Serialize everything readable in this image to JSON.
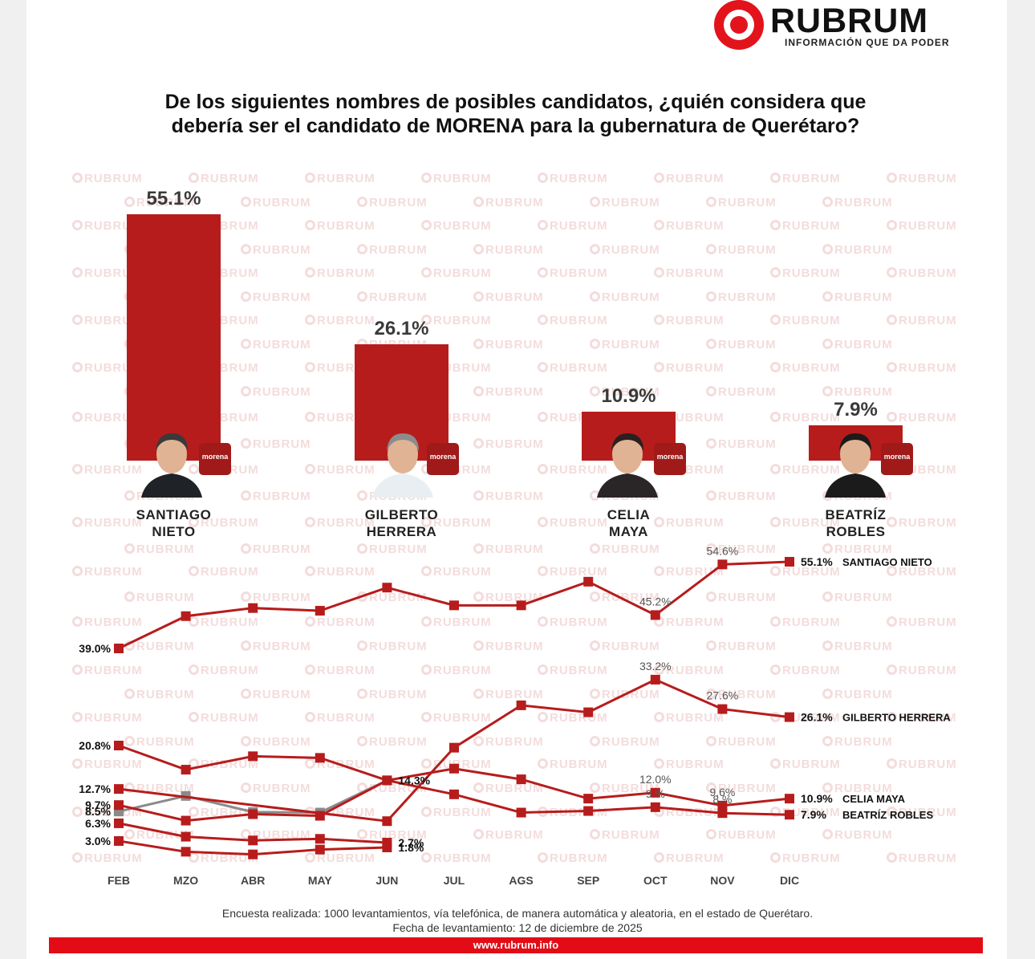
{
  "brand": {
    "name": "RUBRUM",
    "tagline": "INFORMACIÓN QUE DA PODER",
    "watermark": "RUBRUM",
    "url": "www.rubrum.info",
    "accent_color": "#e3131b",
    "bar_color": "#b71c1c"
  },
  "title_line1": "De los siguientes nombres de posibles candidatos, ¿quién considera que",
  "title_line2": "debería ser el candidato de MORENA para la gubernatura de Querétaro?",
  "badge_text": "morena",
  "candidates": [
    {
      "line1": "SANTIAGO",
      "line2": "NIETO",
      "pct_label": "55.1%"
    },
    {
      "line1": "GILBERTO",
      "line2": "HERRERA",
      "pct_label": "26.1%"
    },
    {
      "line1": "CELIA",
      "line2": "MAYA",
      "pct_label": "10.9%"
    },
    {
      "line1": "BEATRÍZ",
      "line2": "ROBLES",
      "pct_label": "7.9%"
    }
  ],
  "chart_data": [
    {
      "type": "bar",
      "categories": [
        "SANTIAGO NIETO",
        "GILBERTO HERRERA",
        "CELIA MAYA",
        "BEATRÍZ ROBLES"
      ],
      "values": [
        55.1,
        26.1,
        10.9,
        7.9
      ],
      "data_labels": [
        "55.1%",
        "26.1%",
        "10.9%",
        "7.9%"
      ]
    },
    {
      "type": "line",
      "x": [
        "FEB",
        "MZO",
        "ABR",
        "MAY",
        "JUN",
        "JUL",
        "AGS",
        "SEP",
        "OCT",
        "NOV",
        "DIC"
      ],
      "series": [
        {
          "name": "SANTIAGO NIETO",
          "color": "#b71c1c",
          "marker": "square",
          "values": [
            39.0,
            45.0,
            46.5,
            46.0,
            50.3,
            47.0,
            47.0,
            51.4,
            45.2,
            54.6,
            55.1
          ]
        },
        {
          "name": "GILBERTO HERRERA",
          "color": "#b71c1c",
          "marker": "square",
          "values": [
            12.7,
            null,
            null,
            null,
            6.7,
            20.4,
            28.3,
            27.0,
            33.2,
            27.6,
            26.1
          ]
        },
        {
          "name": "CELIA MAYA",
          "color": "#b71c1c",
          "marker": "square",
          "values": [
            20.8,
            16.3,
            18.8,
            18.5,
            14.3,
            16.5,
            14.5,
            10.9,
            12.0,
            9.6,
            10.9
          ]
        },
        {
          "name": "BEATRÍZ ROBLES",
          "color": "#b71c1c",
          "marker": "square",
          "values": [
            9.7,
            6.8,
            8.0,
            7.7,
            14.3,
            11.7,
            8.3,
            8.6,
            9.3,
            8.2,
            7.9
          ]
        },
        {
          "name": "",
          "color": "#8a8a8a",
          "marker": "square",
          "values": [
            8.5,
            11.4,
            8.4,
            8.3,
            14.3,
            null,
            null,
            null,
            null,
            null,
            null
          ]
        },
        {
          "name": "",
          "color": "#b71c1c",
          "marker": "square",
          "values": [
            6.3,
            3.8,
            3.1,
            3.4,
            2.7,
            null,
            null,
            null,
            null,
            null,
            null
          ]
        },
        {
          "name": "",
          "color": "#b71c1c",
          "marker": "square",
          "values": [
            3.0,
            1.0,
            0.5,
            1.4,
            1.8,
            null,
            null,
            null,
            null,
            null,
            null
          ]
        }
      ],
      "data_labels": [
        {
          "text": "39.0%",
          "series": 0,
          "point": 0,
          "style": "bold",
          "side": "left"
        },
        {
          "text": "45.2%",
          "series": 0,
          "point": 8,
          "style": "light",
          "side": "above"
        },
        {
          "text": "54.6%",
          "series": 0,
          "point": 9,
          "style": "light",
          "side": "above"
        },
        {
          "text": "55.1%",
          "series": 0,
          "point": 10,
          "style": "bold",
          "side": "right"
        },
        {
          "text": "33.2%",
          "series": 1,
          "point": 8,
          "style": "light",
          "side": "above"
        },
        {
          "text": "27.6%",
          "series": 1,
          "point": 9,
          "style": "light",
          "side": "above"
        },
        {
          "text": "26.1%",
          "series": 1,
          "point": 10,
          "style": "bold",
          "side": "right"
        },
        {
          "text": "12.7%",
          "series": 1,
          "point": 0,
          "style": "bold",
          "side": "left"
        },
        {
          "text": "20.8%",
          "series": 2,
          "point": 0,
          "style": "bold",
          "side": "left"
        },
        {
          "text": "12.0%",
          "series": 2,
          "point": 8,
          "style": "light",
          "side": "above"
        },
        {
          "text": "9.6%",
          "series": 2,
          "point": 9,
          "style": "light",
          "side": "above"
        },
        {
          "text": "10.9%",
          "series": 2,
          "point": 10,
          "style": "bold",
          "side": "right"
        },
        {
          "text": "14.3%",
          "series": 2,
          "point": 4,
          "style": "bold",
          "side": "right"
        },
        {
          "text": "9.7%",
          "series": 3,
          "point": 0,
          "style": "bold",
          "side": "left"
        },
        {
          "text": "9.%",
          "series": 3,
          "point": 8,
          "style": "light",
          "side": "above"
        },
        {
          "text": "8.%",
          "series": 3,
          "point": 9,
          "style": "light",
          "side": "above"
        },
        {
          "text": "7.9%",
          "series": 3,
          "point": 10,
          "style": "bold",
          "side": "right"
        },
        {
          "text": "8.5%",
          "series": 4,
          "point": 0,
          "style": "bold",
          "side": "left"
        },
        {
          "text": "6.3%",
          "series": 5,
          "point": 0,
          "style": "bold",
          "side": "left"
        },
        {
          "text": "2.7%",
          "series": 5,
          "point": 4,
          "style": "bold",
          "side": "right"
        },
        {
          "text": "3.0%",
          "series": 6,
          "point": 0,
          "style": "bold",
          "side": "left"
        },
        {
          "text": "1.8%",
          "series": 6,
          "point": 4,
          "style": "bold",
          "side": "right"
        }
      ],
      "end_labels": [
        "SANTIAGO NIETO",
        "GILBERTO HERRERA",
        "CELIA MAYA",
        "BEATRÍZ ROBLES"
      ],
      "grid": false,
      "legend": "right, at line ends"
    }
  ],
  "note_line1": "Encuesta realizada: 1000 levantamientos, vía telefónica, de manera automática y aleatoria, en el estado de Querétaro.",
  "note_line2": "Fecha de levantamiento: 12 de diciembre de 2025"
}
